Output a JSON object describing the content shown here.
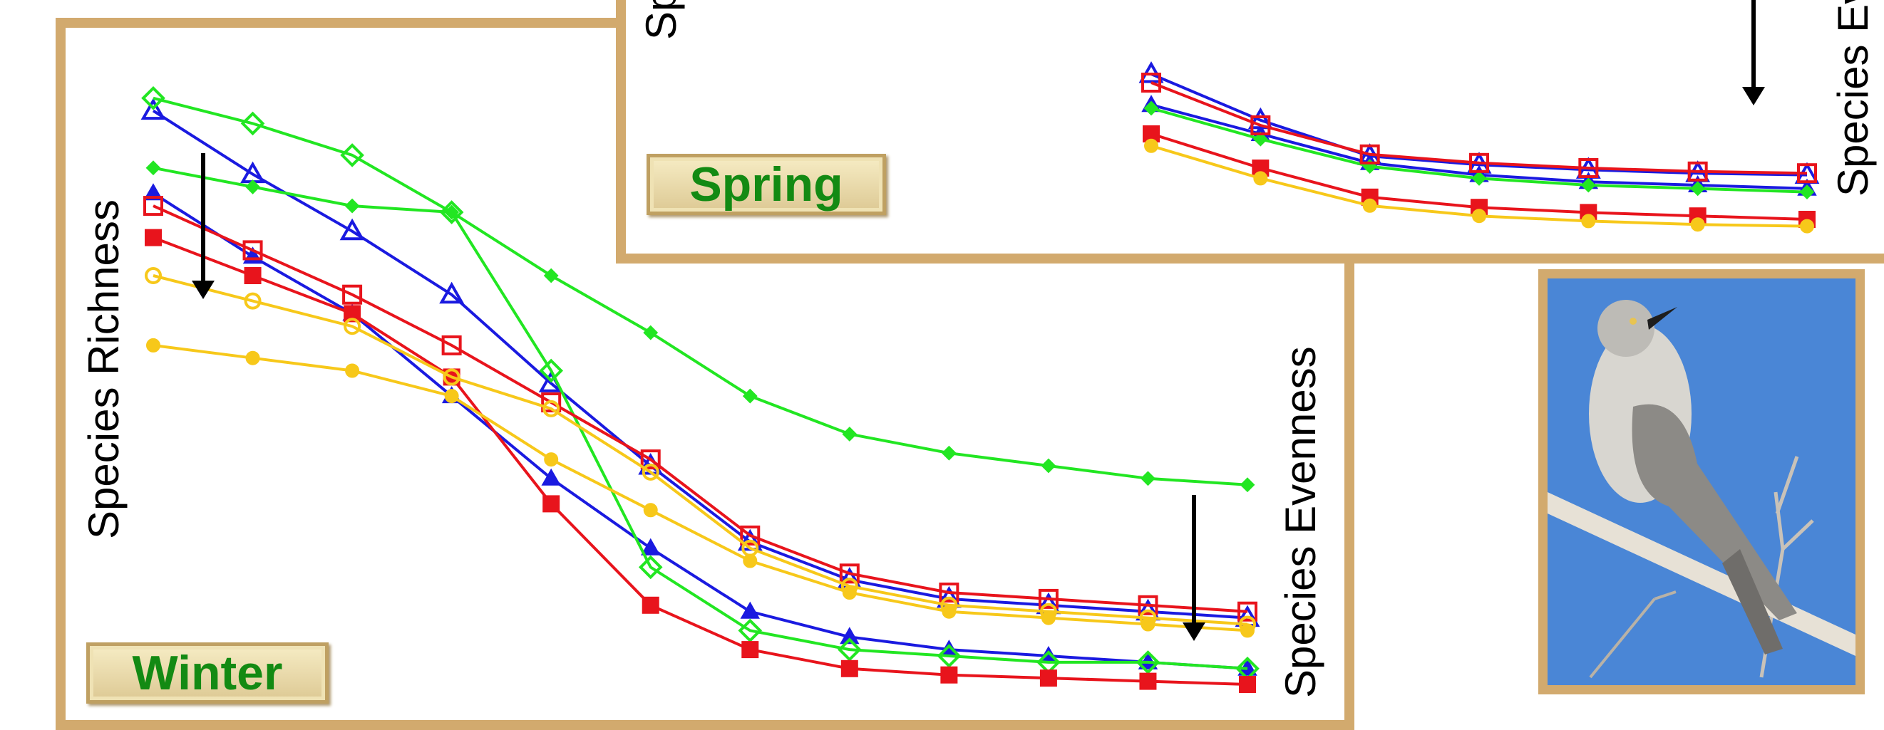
{
  "panels": {
    "winter": {
      "season_label": "Winter",
      "richness_label": "Species Richness",
      "evenness_label": "Species Evenness"
    },
    "spring": {
      "season_label": "Spring",
      "richness_label": "Species Richness",
      "evenness_label": "Species Evenness"
    }
  },
  "colors": {
    "frame": "#d2aa6e",
    "label_text": "#138a13",
    "red": "#e8141c",
    "blue": "#1a1ae0",
    "green": "#22e622",
    "yellow": "#f7c81a"
  },
  "photo": {
    "subject": "mockingbird perched on a branch",
    "sky": "#4a86d6"
  },
  "chart_data": [
    {
      "type": "line",
      "panel": "Winter",
      "axis_ticks_shown": false,
      "x": [
        1,
        2,
        3,
        4,
        5,
        6,
        7,
        8,
        9,
        10,
        11,
        12
      ],
      "ylim": [
        0,
        100
      ],
      "series": [
        {
          "color": "#1a1ae0",
          "marker": "triangle-open",
          "values": [
            96,
            86,
            77,
            67,
            53,
            40,
            28,
            22,
            19,
            18,
            17,
            16
          ]
        },
        {
          "color": "#1a1ae0",
          "marker": "triangle-filled",
          "values": [
            83,
            73,
            64,
            51,
            38,
            27,
            17,
            13,
            11,
            10,
            9,
            8
          ]
        },
        {
          "color": "#22e622",
          "marker": "diamond-open",
          "values": [
            98,
            94,
            89,
            80,
            55,
            24,
            14,
            11,
            10,
            9,
            9,
            8
          ]
        },
        {
          "color": "#22e622",
          "marker": "diamond-filled",
          "values": [
            87,
            84,
            81,
            80,
            70,
            61,
            51,
            45,
            42,
            40,
            38,
            37
          ]
        },
        {
          "color": "#e8141c",
          "marker": "square-open",
          "values": [
            81,
            74,
            67,
            59,
            50,
            41,
            29,
            23,
            20,
            19,
            18,
            17
          ]
        },
        {
          "color": "#e8141c",
          "marker": "square-filled",
          "values": [
            76,
            70,
            64,
            54,
            34,
            18,
            11,
            8,
            7,
            6.5,
            6,
            5.5
          ]
        },
        {
          "color": "#f7c81a",
          "marker": "circle-open",
          "values": [
            70,
            66,
            62,
            54,
            49,
            39,
            27,
            21,
            18,
            17,
            16,
            15
          ]
        },
        {
          "color": "#f7c81a",
          "marker": "circle-filled",
          "values": [
            59,
            57,
            55,
            51,
            41,
            33,
            25,
            20,
            17,
            16,
            15,
            14
          ]
        }
      ]
    },
    {
      "type": "line",
      "panel": "Spring",
      "axis_ticks_shown": false,
      "x": [
        1,
        2,
        3,
        4,
        5,
        6,
        7
      ],
      "ylim": [
        0,
        100
      ],
      "series": [
        {
          "color": "#1a1ae0",
          "marker": "triangle-open",
          "values": [
            115,
            88,
            67,
            62,
            59,
            57,
            56
          ]
        },
        {
          "color": "#1a1ae0",
          "marker": "triangle-filled",
          "values": [
            97,
            80,
            63,
            56,
            52,
            50,
            48
          ]
        },
        {
          "color": "#22e622",
          "marker": "diamond-filled",
          "values": [
            95,
            77,
            61,
            54,
            50,
            48,
            46
          ]
        },
        {
          "color": "#e8141c",
          "marker": "square-open",
          "values": [
            110,
            85,
            68,
            63,
            60,
            58,
            57
          ]
        },
        {
          "color": "#e8141c",
          "marker": "square-filled",
          "values": [
            80,
            60,
            43,
            37,
            34,
            32,
            30
          ]
        },
        {
          "color": "#f7c81a",
          "marker": "circle-filled",
          "values": [
            73,
            54,
            38,
            32,
            29,
            27,
            26
          ]
        }
      ]
    }
  ]
}
